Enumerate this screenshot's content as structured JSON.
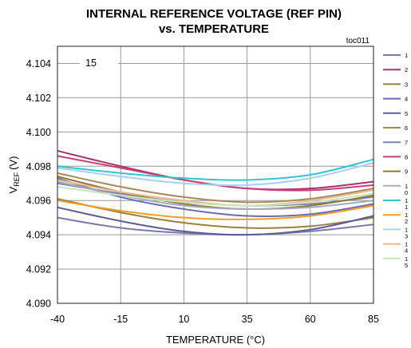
{
  "chart_data": {
    "type": "line",
    "title_line1": "INTERNAL REFERENCE VOLTAGE (REF PIN)",
    "title_line2": "vs. TEMPERATURE",
    "tag": "toc011",
    "xlabel": "TEMPERATURE (°C)",
    "ylabel_main": "V",
    "ylabel_sub": "REF",
    "ylabel_unit": "(V)",
    "annotation": "15",
    "xlim": [
      -40,
      85
    ],
    "ylim": [
      4.09,
      4.105
    ],
    "xticks": [
      "-40",
      "-15",
      "10",
      "35",
      "60",
      "85"
    ],
    "yticks": [
      "4.090",
      "4.092",
      "4.094",
      "4.096",
      "4.098",
      "4.100",
      "4.102",
      "4.104"
    ],
    "grid": true,
    "legend_position": "right",
    "x": [
      -40,
      -15,
      10,
      35,
      60,
      85
    ],
    "series": [
      {
        "name": "1",
        "color": "#7a7aaa",
        "values": [
          4.095,
          4.0944,
          4.0941,
          4.094,
          4.0942,
          4.0946
        ]
      },
      {
        "name": "2",
        "color": "#b0306a",
        "values": [
          4.0989,
          4.098,
          4.0972,
          4.0967,
          4.0967,
          4.0971
        ]
      },
      {
        "name": "3",
        "color": "#9a8040",
        "values": [
          4.0961,
          4.0953,
          4.0947,
          4.0944,
          4.0945,
          4.095
        ]
      },
      {
        "name": "4",
        "color": "#6b6bb5",
        "values": [
          4.0973,
          4.0962,
          4.0955,
          4.0951,
          4.0952,
          4.0958
        ]
      },
      {
        "name": "5",
        "color": "#5c5c96",
        "values": [
          4.0956,
          4.0948,
          4.0942,
          4.094,
          4.0943,
          4.0951
        ]
      },
      {
        "name": "6",
        "color": "#a88a5a",
        "values": [
          4.0976,
          4.0968,
          4.0962,
          4.0959,
          4.0961,
          4.0967
        ]
      },
      {
        "name": "7",
        "color": "#8383b0",
        "values": [
          4.097,
          4.0964,
          4.0959,
          4.0957,
          4.0958,
          4.0962
        ]
      },
      {
        "name": "8",
        "color": "#c0447a",
        "values": [
          4.0986,
          4.0979,
          4.0972,
          4.0967,
          4.0966,
          4.0969
        ]
      },
      {
        "name": "9",
        "color": "#8a7a35",
        "values": [
          4.0974,
          4.0965,
          4.0958,
          4.0955,
          4.0957,
          4.0963
        ]
      },
      {
        "name": "10",
        "color": "#a8a8bf",
        "values": [
          4.0971,
          4.0963,
          4.0957,
          4.0955,
          4.0956,
          4.096
        ]
      },
      {
        "name": "11",
        "color": "#2ec6d2",
        "values": [
          4.098,
          4.0976,
          4.0973,
          4.0972,
          4.0975,
          4.0984
        ]
      },
      {
        "name": "12",
        "color": "#f0a020",
        "values": [
          4.096,
          4.0954,
          4.095,
          4.0949,
          4.0951,
          4.0957
        ]
      },
      {
        "name": "13",
        "color": "#a8d0f0",
        "values": [
          4.0979,
          4.0974,
          4.097,
          4.0969,
          4.0973,
          4.0982
        ]
      },
      {
        "name": "14",
        "color": "#f0b890",
        "values": [
          4.0972,
          4.0965,
          4.096,
          4.0957,
          4.096,
          4.0966
        ]
      },
      {
        "name": "15",
        "color": "#c8e6b8",
        "values": [
          4.0968,
          4.0963,
          4.0959,
          4.0957,
          4.0959,
          4.0964
        ]
      }
    ]
  }
}
